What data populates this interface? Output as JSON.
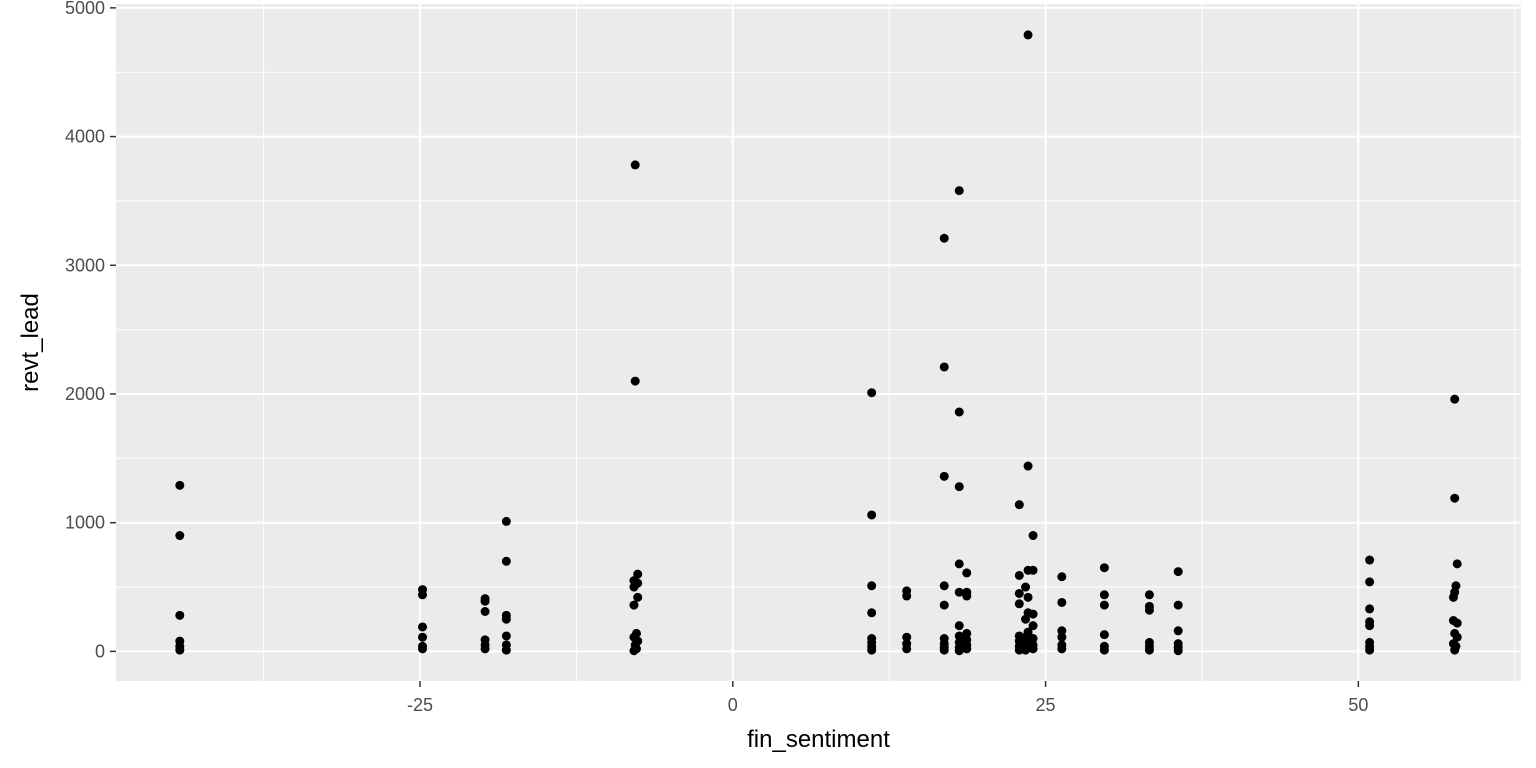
{
  "chart_data": {
    "type": "scatter",
    "title": "",
    "xlabel": "fin_sentiment",
    "ylabel": "revt_lead",
    "xlim": [
      -49.3,
      63.0
    ],
    "ylim": [
      -230,
      5030
    ],
    "x_ticks": [
      -25,
      0,
      25,
      50
    ],
    "x_tick_labels": [
      "-25",
      "0",
      "25",
      "50"
    ],
    "x_minor_ticks": [
      -37.5,
      -12.5,
      12.5,
      37.5,
      62.5
    ],
    "y_ticks": [
      0,
      1000,
      2000,
      3000,
      4000,
      5000
    ],
    "y_tick_labels": [
      "0",
      "1000",
      "2000",
      "3000",
      "4000",
      "5000"
    ],
    "y_minor_ticks": [
      500,
      1500,
      2500,
      3500,
      4500
    ],
    "grid": true,
    "legend": "none",
    "colors": {
      "panel": "#ebebeb",
      "grid": "#ffffff",
      "point": "#000000"
    },
    "points": [
      [
        -44.2,
        1290
      ],
      [
        -44.2,
        900
      ],
      [
        -44.2,
        280
      ],
      [
        -44.2,
        80
      ],
      [
        -44.2,
        40
      ],
      [
        -44.2,
        10
      ],
      [
        -24.8,
        480
      ],
      [
        -24.8,
        440
      ],
      [
        -24.8,
        190
      ],
      [
        -24.8,
        110
      ],
      [
        -24.8,
        40
      ],
      [
        -24.8,
        20
      ],
      [
        -19.8,
        410
      ],
      [
        -19.8,
        390
      ],
      [
        -19.8,
        310
      ],
      [
        -19.8,
        90
      ],
      [
        -19.8,
        50
      ],
      [
        -19.8,
        20
      ],
      [
        -18.1,
        1010
      ],
      [
        -18.1,
        700
      ],
      [
        -18.1,
        280
      ],
      [
        -18.1,
        250
      ],
      [
        -18.1,
        120
      ],
      [
        -18.1,
        50
      ],
      [
        -18.1,
        10
      ],
      [
        -7.8,
        3780
      ],
      [
        -7.8,
        2100
      ],
      [
        -7.6,
        600
      ],
      [
        -7.9,
        550
      ],
      [
        -7.6,
        530
      ],
      [
        -7.9,
        500
      ],
      [
        -7.6,
        420
      ],
      [
        -7.9,
        360
      ],
      [
        -7.7,
        140
      ],
      [
        -7.9,
        110
      ],
      [
        -7.6,
        80
      ],
      [
        -7.8,
        50
      ],
      [
        -7.7,
        20
      ],
      [
        -7.9,
        5
      ],
      [
        11.1,
        2010
      ],
      [
        11.1,
        1060
      ],
      [
        11.1,
        510
      ],
      [
        11.1,
        300
      ],
      [
        11.1,
        100
      ],
      [
        11.1,
        70
      ],
      [
        11.1,
        40
      ],
      [
        11.1,
        10
      ],
      [
        13.9,
        470
      ],
      [
        13.9,
        430
      ],
      [
        13.9,
        110
      ],
      [
        13.9,
        60
      ],
      [
        13.9,
        20
      ],
      [
        16.9,
        3210
      ],
      [
        16.9,
        2210
      ],
      [
        16.9,
        1360
      ],
      [
        16.9,
        510
      ],
      [
        16.9,
        360
      ],
      [
        16.9,
        100
      ],
      [
        16.9,
        60
      ],
      [
        16.9,
        30
      ],
      [
        16.9,
        10
      ],
      [
        18.1,
        3580
      ],
      [
        18.1,
        1860
      ],
      [
        18.1,
        1280
      ],
      [
        18.1,
        680
      ],
      [
        18.1,
        460
      ],
      [
        18.1,
        200
      ],
      [
        18.1,
        120
      ],
      [
        18.1,
        70
      ],
      [
        18.1,
        30
      ],
      [
        18.1,
        5
      ],
      [
        18.7,
        610
      ],
      [
        18.7,
        460
      ],
      [
        18.7,
        430
      ],
      [
        18.7,
        140
      ],
      [
        18.7,
        90
      ],
      [
        18.7,
        50
      ],
      [
        18.7,
        20
      ],
      [
        22.9,
        1140
      ],
      [
        22.9,
        590
      ],
      [
        22.9,
        450
      ],
      [
        22.9,
        370
      ],
      [
        22.9,
        120
      ],
      [
        22.9,
        80
      ],
      [
        22.9,
        40
      ],
      [
        22.9,
        10
      ],
      [
        23.6,
        4790
      ],
      [
        23.6,
        1440
      ],
      [
        23.6,
        630
      ],
      [
        23.4,
        500
      ],
      [
        23.6,
        420
      ],
      [
        23.6,
        300
      ],
      [
        23.4,
        250
      ],
      [
        23.6,
        150
      ],
      [
        23.4,
        110
      ],
      [
        23.6,
        80
      ],
      [
        23.4,
        50
      ],
      [
        23.6,
        30
      ],
      [
        23.4,
        10
      ],
      [
        24.0,
        900
      ],
      [
        24.0,
        630
      ],
      [
        24.0,
        290
      ],
      [
        24.0,
        200
      ],
      [
        24.0,
        100
      ],
      [
        24.0,
        50
      ],
      [
        24.0,
        20
      ],
      [
        26.3,
        580
      ],
      [
        26.3,
        380
      ],
      [
        26.3,
        160
      ],
      [
        26.3,
        110
      ],
      [
        26.3,
        50
      ],
      [
        26.3,
        20
      ],
      [
        29.7,
        650
      ],
      [
        29.7,
        440
      ],
      [
        29.7,
        360
      ],
      [
        29.7,
        130
      ],
      [
        29.7,
        40
      ],
      [
        29.7,
        10
      ],
      [
        33.3,
        440
      ],
      [
        33.3,
        350
      ],
      [
        33.3,
        320
      ],
      [
        33.3,
        70
      ],
      [
        33.3,
        40
      ],
      [
        33.3,
        10
      ],
      [
        35.6,
        620
      ],
      [
        35.6,
        360
      ],
      [
        35.6,
        160
      ],
      [
        35.6,
        60
      ],
      [
        35.6,
        30
      ],
      [
        35.6,
        5
      ],
      [
        50.9,
        710
      ],
      [
        50.9,
        540
      ],
      [
        50.9,
        330
      ],
      [
        50.9,
        230
      ],
      [
        50.9,
        200
      ],
      [
        50.9,
        70
      ],
      [
        50.9,
        40
      ],
      [
        50.9,
        10
      ],
      [
        57.7,
        1960
      ],
      [
        57.7,
        1190
      ],
      [
        57.9,
        680
      ],
      [
        57.8,
        510
      ],
      [
        57.7,
        460
      ],
      [
        57.6,
        420
      ],
      [
        57.6,
        240
      ],
      [
        57.9,
        220
      ],
      [
        57.7,
        140
      ],
      [
        57.9,
        110
      ],
      [
        57.6,
        60
      ],
      [
        57.8,
        40
      ],
      [
        57.7,
        10
      ]
    ]
  }
}
